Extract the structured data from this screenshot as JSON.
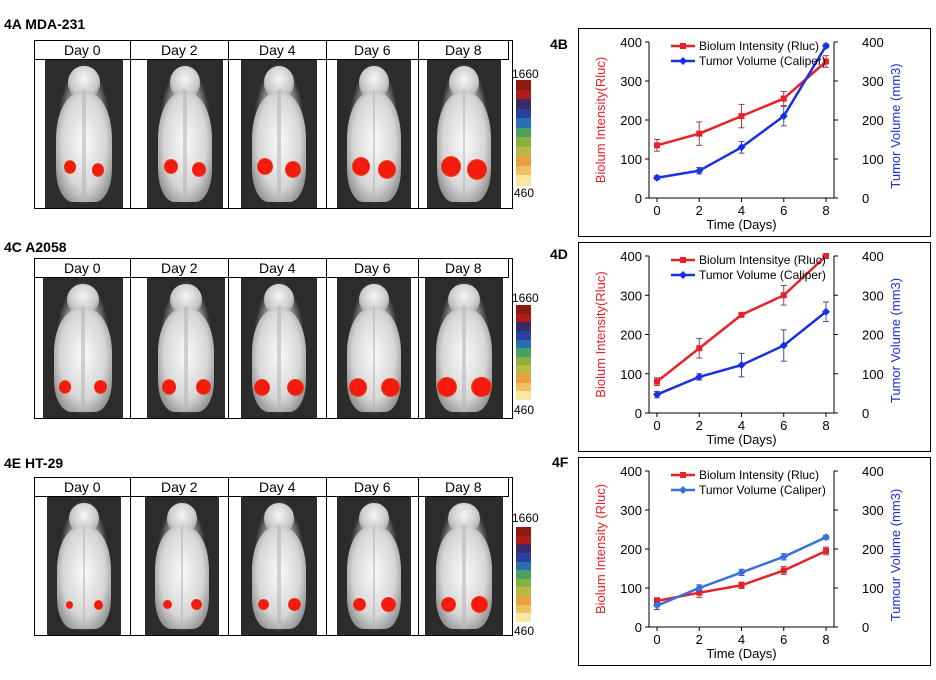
{
  "rows": [
    {
      "image_label": "4A  MDA-231",
      "chart_label": "4B",
      "days": [
        "Day 0",
        "Day 2",
        "Day 4",
        "Day 6",
        "Day 8"
      ],
      "scale_max": "1660",
      "scale_min": "460"
    },
    {
      "image_label": "4C  A2058",
      "chart_label": "4D",
      "days": [
        "Day 0",
        "Day 2",
        "Day 4",
        "Day 6",
        "Day 8"
      ],
      "scale_max": "1660",
      "scale_min": "460"
    },
    {
      "image_label": "4E  HT-29",
      "chart_label": "4F",
      "days": [
        "Day 0",
        "Day 2",
        "Day 4",
        "Day 6",
        "Day 8"
      ],
      "scale_max": "1660",
      "scale_min": "460"
    }
  ],
  "colors": {
    "biolum": "#e8202a",
    "volume": "#1a2fe0",
    "volume_light": "#3b6fe0"
  },
  "chart_data": [
    {
      "type": "line",
      "x": [
        0,
        2,
        4,
        6,
        8
      ],
      "xlabel": "Time (Days)",
      "ylabel_left": "Biolum Intensity(Rluc)",
      "ylabel_right": "Tumor Volume (mm3)",
      "ylim": [
        0,
        400
      ],
      "yticks": [
        0,
        100,
        200,
        300,
        400
      ],
      "xticks": [
        0,
        2,
        4,
        6,
        8
      ],
      "series": [
        {
          "name": "Biolum Intensity (Rluc)",
          "values": [
            135,
            165,
            210,
            255,
            350
          ],
          "errors": [
            15,
            30,
            30,
            18,
            15
          ],
          "axis": "left"
        },
        {
          "name": "Tumor Volume (Caliper)",
          "values": [
            52,
            70,
            130,
            210,
            390
          ],
          "errors": [
            5,
            8,
            15,
            25,
            5
          ],
          "axis": "right"
        }
      ]
    },
    {
      "type": "line",
      "x": [
        0,
        2,
        4,
        6,
        8
      ],
      "xlabel": "Time (Days)",
      "ylabel_left": "Biolum Intensity(Rluc)",
      "ylabel_right": "Tumor Volume (mm3)",
      "ylim": [
        0,
        400
      ],
      "yticks": [
        0,
        100,
        200,
        300,
        400
      ],
      "xticks": [
        0,
        2,
        4,
        6,
        8
      ],
      "series": [
        {
          "name": "Biolum Intensitye (Rluc)",
          "values": [
            80,
            165,
            250,
            300,
            400
          ],
          "errors": [
            10,
            25,
            5,
            25,
            3
          ],
          "axis": "left"
        },
        {
          "name": "Tumor Volume (Caliper)",
          "values": [
            47,
            92,
            122,
            172,
            258
          ],
          "errors": [
            8,
            8,
            30,
            40,
            25
          ],
          "axis": "right"
        }
      ]
    },
    {
      "type": "line",
      "x": [
        0,
        2,
        4,
        6,
        8
      ],
      "xlabel": "Time (Days)",
      "ylabel_left": "Biolum Intensity (Rluc)",
      "ylabel_right": "Tumour Volume (mm3)",
      "ylim": [
        0,
        400
      ],
      "yticks": [
        0,
        100,
        200,
        300,
        400
      ],
      "xticks": [
        0,
        2,
        4,
        6,
        8
      ],
      "series": [
        {
          "name": "Biolum Intensity (Rluc)",
          "values": [
            67,
            88,
            107,
            145,
            195
          ],
          "errors": [
            8,
            12,
            8,
            10,
            10
          ],
          "axis": "left"
        },
        {
          "name": "Tumor Volume (Caliper)",
          "values": [
            55,
            100,
            140,
            180,
            230
          ],
          "errors": [
            10,
            8,
            8,
            8,
            5
          ],
          "axis": "right"
        }
      ]
    }
  ]
}
